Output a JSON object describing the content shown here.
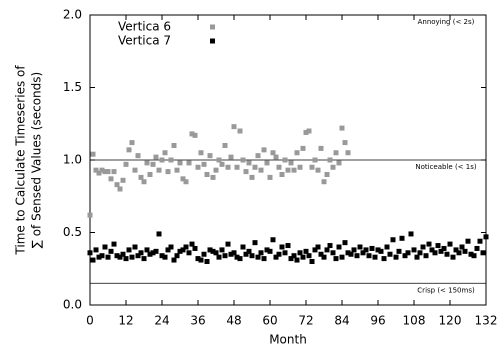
{
  "chart_data": {
    "type": "scatter",
    "ylabel": [
      "Time to Calculate Timeseries of",
      "∑ of Sensed Values (seconds)"
    ],
    "xlabel": "Month",
    "xlim": [
      0,
      132
    ],
    "ylim": [
      0,
      2
    ],
    "xticks": [
      0,
      12,
      24,
      36,
      48,
      60,
      72,
      84,
      96,
      108,
      120,
      132
    ],
    "yticks": [
      {
        "value": 0,
        "label": "0.0"
      },
      {
        "value": 0.5,
        "label": "0.5"
      },
      {
        "value": 1,
        "label": "1.0"
      },
      {
        "value": 1.5,
        "label": "1.5"
      },
      {
        "value": 2,
        "label": "2.0"
      }
    ],
    "thresholds": [
      {
        "value": 2,
        "label": "Annoying (< 2s)"
      },
      {
        "value": 1,
        "label": "Noticeable (< 1s)"
      },
      {
        "value": 0.15,
        "label": "Crisp (< 150ms)"
      }
    ],
    "legend": "top-left",
    "series": [
      {
        "name": "Vertica 6",
        "color": "#999999",
        "x": [
          0,
          1,
          2,
          3,
          4,
          5,
          6,
          7,
          8,
          9,
          10,
          11,
          12,
          13,
          14,
          15,
          16,
          17,
          18,
          19,
          20,
          21,
          22,
          23,
          24,
          25,
          26,
          27,
          28,
          29,
          30,
          31,
          32,
          33,
          34,
          35,
          36,
          37,
          38,
          39,
          40,
          41,
          42,
          43,
          44,
          45,
          46,
          47,
          48,
          49,
          50,
          51,
          52,
          53,
          54,
          55,
          56,
          57,
          58,
          59,
          60,
          61,
          62,
          63,
          64,
          65,
          66,
          67,
          68,
          69,
          70,
          71,
          72,
          73,
          74,
          75,
          76,
          77,
          78,
          79,
          80,
          81,
          82,
          83,
          84,
          85,
          86
        ],
        "values": [
          0.62,
          1.04,
          0.93,
          0.91,
          0.93,
          0.92,
          0.92,
          0.87,
          0.92,
          0.83,
          0.8,
          0.86,
          0.97,
          1.07,
          1.12,
          0.93,
          1.03,
          0.88,
          0.85,
          0.98,
          0.9,
          0.97,
          1.02,
          0.93,
          1.0,
          1.05,
          0.92,
          1.0,
          1.1,
          0.93,
          0.98,
          0.87,
          0.85,
          0.98,
          1.18,
          1.17,
          0.95,
          1.05,
          0.97,
          0.9,
          1.03,
          0.88,
          0.93,
          1.0,
          0.97,
          1.1,
          0.95,
          1.02,
          1.23,
          0.95,
          1.2,
          1.0,
          0.92,
          0.98,
          0.88,
          0.95,
          1.03,
          0.93,
          1.07,
          0.98,
          0.88,
          1.05,
          1.02,
          0.95,
          0.9,
          1.0,
          0.93,
          0.98,
          0.93,
          1.05,
          0.95,
          1.08,
          1.19,
          1.2,
          0.95,
          1.0,
          0.93,
          1.08,
          0.85,
          0.9,
          1.0,
          0.95,
          1.05,
          0.98,
          1.22,
          1.12,
          1.05
        ]
      },
      {
        "name": "Vertica 7",
        "color": "#000000",
        "x": [
          0,
          1,
          2,
          3,
          4,
          5,
          6,
          7,
          8,
          9,
          10,
          11,
          12,
          13,
          14,
          15,
          16,
          17,
          18,
          19,
          20,
          21,
          22,
          23,
          24,
          25,
          26,
          27,
          28,
          29,
          30,
          31,
          32,
          33,
          34,
          35,
          36,
          37,
          38,
          39,
          40,
          41,
          42,
          43,
          44,
          45,
          46,
          47,
          48,
          49,
          50,
          51,
          52,
          53,
          54,
          55,
          56,
          57,
          58,
          59,
          60,
          61,
          62,
          63,
          64,
          65,
          66,
          67,
          68,
          69,
          70,
          71,
          72,
          73,
          74,
          75,
          76,
          77,
          78,
          79,
          80,
          81,
          82,
          83,
          84,
          85,
          86,
          87,
          88,
          89,
          90,
          91,
          92,
          93,
          94,
          95,
          96,
          97,
          98,
          99,
          100,
          101,
          102,
          103,
          104,
          105,
          106,
          107,
          108,
          109,
          110,
          111,
          112,
          113,
          114,
          115,
          116,
          117,
          118,
          119,
          120,
          121,
          122,
          123,
          124,
          125,
          126,
          127,
          128,
          129,
          130,
          131,
          132
        ],
        "values": [
          0.36,
          0.31,
          0.38,
          0.33,
          0.34,
          0.4,
          0.33,
          0.37,
          0.42,
          0.34,
          0.33,
          0.35,
          0.32,
          0.38,
          0.33,
          0.4,
          0.34,
          0.36,
          0.32,
          0.38,
          0.35,
          0.36,
          0.37,
          0.49,
          0.34,
          0.33,
          0.38,
          0.4,
          0.31,
          0.34,
          0.37,
          0.38,
          0.4,
          0.36,
          0.42,
          0.39,
          0.32,
          0.31,
          0.35,
          0.3,
          0.38,
          0.37,
          0.36,
          0.33,
          0.38,
          0.34,
          0.42,
          0.35,
          0.36,
          0.33,
          0.32,
          0.4,
          0.35,
          0.37,
          0.34,
          0.43,
          0.33,
          0.36,
          0.32,
          0.38,
          0.37,
          0.45,
          0.33,
          0.35,
          0.4,
          0.36,
          0.41,
          0.32,
          0.34,
          0.31,
          0.36,
          0.33,
          0.37,
          0.34,
          0.3,
          0.38,
          0.4,
          0.35,
          0.33,
          0.38,
          0.41,
          0.36,
          0.32,
          0.4,
          0.33,
          0.43,
          0.36,
          0.35,
          0.38,
          0.34,
          0.4,
          0.36,
          0.38,
          0.34,
          0.39,
          0.33,
          0.38,
          0.37,
          0.32,
          0.4,
          0.35,
          0.45,
          0.33,
          0.37,
          0.46,
          0.34,
          0.36,
          0.49,
          0.38,
          0.33,
          0.36,
          0.4,
          0.34,
          0.42,
          0.38,
          0.36,
          0.41,
          0.37,
          0.39,
          0.35,
          0.42,
          0.33,
          0.38,
          0.36,
          0.4,
          0.37,
          0.44,
          0.35,
          0.34,
          0.39,
          0.44,
          0.36,
          0.47
        ]
      }
    ]
  }
}
